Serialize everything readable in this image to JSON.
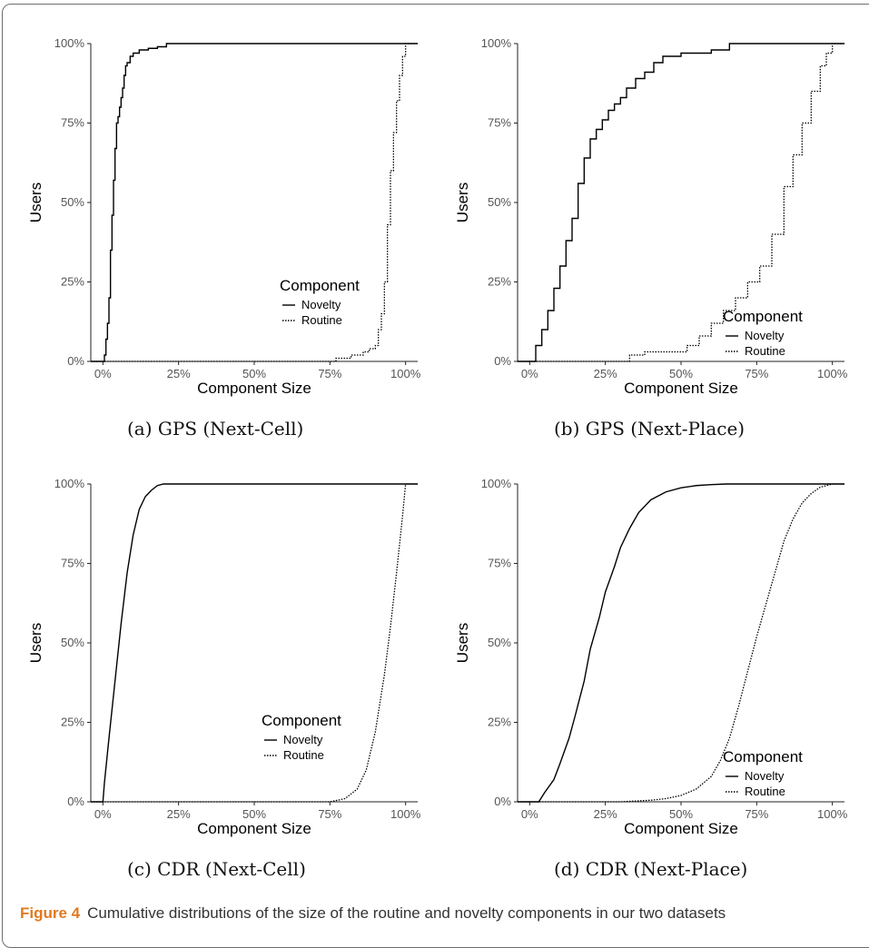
{
  "figure_caption": {
    "label": "Figure 4",
    "text": "Cumulative distributions of the size of the routine and novelty components in our two datasets"
  },
  "chart_data": [
    {
      "type": "line",
      "subcaption": "(a)  GPS (Next-Cell)",
      "xlabel": "Component Size",
      "ylabel": "Users",
      "xlim": [
        -0.04,
        1.04
      ],
      "ylim": [
        0,
        1
      ],
      "xticks": [
        "0%",
        "25%",
        "50%",
        "75%",
        "100%"
      ],
      "yticks": [
        "0%",
        "25%",
        "50%",
        "75%",
        "100%"
      ],
      "legend": {
        "title": "Component",
        "position": "center-right"
      },
      "step": true,
      "series": [
        {
          "name": "Novelty",
          "style": "solid",
          "x": [
            -0.04,
            0.005,
            0.01,
            0.015,
            0.02,
            0.025,
            0.03,
            0.035,
            0.04,
            0.045,
            0.05,
            0.055,
            0.06,
            0.065,
            0.07,
            0.075,
            0.08,
            0.09,
            0.1,
            0.12,
            0.15,
            0.18,
            0.21,
            0.3,
            1.04
          ],
          "y": [
            0,
            0.02,
            0.07,
            0.12,
            0.2,
            0.35,
            0.46,
            0.57,
            0.67,
            0.75,
            0.77,
            0.8,
            0.83,
            0.86,
            0.9,
            0.93,
            0.94,
            0.96,
            0.97,
            0.98,
            0.985,
            0.99,
            1.0,
            1.0,
            1.0
          ]
        },
        {
          "name": "Routine",
          "style": "dotted",
          "x": [
            -0.04,
            0.77,
            0.82,
            0.86,
            0.88,
            0.9,
            0.91,
            0.92,
            0.93,
            0.94,
            0.95,
            0.96,
            0.97,
            0.98,
            0.99,
            1.0,
            1.04
          ],
          "y": [
            0,
            0.01,
            0.02,
            0.03,
            0.04,
            0.05,
            0.1,
            0.15,
            0.25,
            0.43,
            0.6,
            0.72,
            0.82,
            0.9,
            0.96,
            1.0,
            1.0
          ]
        }
      ]
    },
    {
      "type": "line",
      "subcaption": "(b)  GPS (Next-Place)",
      "xlabel": "Component Size",
      "ylabel": "Users",
      "xlim": [
        -0.04,
        1.04
      ],
      "ylim": [
        0,
        1
      ],
      "xticks": [
        "0%",
        "25%",
        "50%",
        "75%",
        "100%"
      ],
      "yticks": [
        "0%",
        "25%",
        "50%",
        "75%",
        "100%"
      ],
      "legend": {
        "title": "Component",
        "position": "bottom-right"
      },
      "step": true,
      "series": [
        {
          "name": "Novelty",
          "style": "solid",
          "x": [
            -0.04,
            0.02,
            0.04,
            0.06,
            0.08,
            0.1,
            0.12,
            0.14,
            0.16,
            0.18,
            0.2,
            0.22,
            0.24,
            0.26,
            0.28,
            0.3,
            0.32,
            0.35,
            0.38,
            0.41,
            0.44,
            0.5,
            0.6,
            0.66,
            0.75,
            1.04
          ],
          "y": [
            0,
            0.05,
            0.1,
            0.16,
            0.23,
            0.3,
            0.38,
            0.45,
            0.56,
            0.64,
            0.7,
            0.73,
            0.76,
            0.79,
            0.81,
            0.83,
            0.86,
            0.89,
            0.91,
            0.94,
            0.96,
            0.97,
            0.98,
            1.0,
            1.0,
            1.0
          ]
        },
        {
          "name": "Routine",
          "style": "dotted",
          "x": [
            -0.04,
            0.33,
            0.38,
            0.45,
            0.52,
            0.56,
            0.6,
            0.64,
            0.68,
            0.72,
            0.76,
            0.8,
            0.84,
            0.87,
            0.9,
            0.93,
            0.96,
            0.98,
            1.0,
            1.04
          ],
          "y": [
            0,
            0.02,
            0.03,
            0.03,
            0.05,
            0.08,
            0.12,
            0.16,
            0.2,
            0.25,
            0.3,
            0.4,
            0.55,
            0.65,
            0.75,
            0.85,
            0.93,
            0.97,
            1.0,
            1.0
          ]
        }
      ]
    },
    {
      "type": "line",
      "subcaption": "(c)  CDR (Next-Cell)",
      "xlabel": "Component Size",
      "ylabel": "Users",
      "xlim": [
        -0.04,
        1.04
      ],
      "ylim": [
        0,
        1
      ],
      "xticks": [
        "0%",
        "25%",
        "50%",
        "75%",
        "100%"
      ],
      "yticks": [
        "0%",
        "25%",
        "50%",
        "75%",
        "100%"
      ],
      "legend": {
        "title": "Component",
        "position": "bottom-right"
      },
      "step": false,
      "series": [
        {
          "name": "Novelty",
          "style": "solid",
          "x": [
            -0.04,
            0.0,
            0.005,
            0.02,
            0.04,
            0.06,
            0.08,
            0.1,
            0.12,
            0.14,
            0.16,
            0.18,
            0.2,
            0.25,
            1.04
          ],
          "y": [
            0,
            0.0,
            0.06,
            0.2,
            0.38,
            0.56,
            0.72,
            0.84,
            0.92,
            0.96,
            0.98,
            0.995,
            1.0,
            1.0,
            1.0
          ]
        },
        {
          "name": "Routine",
          "style": "dotted",
          "x": [
            -0.04,
            0.75,
            0.8,
            0.84,
            0.87,
            0.9,
            0.93,
            0.95,
            0.97,
            0.99,
            1.0,
            1.04
          ],
          "y": [
            0,
            0.0,
            0.01,
            0.04,
            0.1,
            0.22,
            0.4,
            0.55,
            0.72,
            0.9,
            1.0,
            1.0
          ]
        }
      ]
    },
    {
      "type": "line",
      "subcaption": "(d)  CDR (Next-Place)",
      "xlabel": "Component Size",
      "ylabel": "Users",
      "xlim": [
        -0.04,
        1.04
      ],
      "ylim": [
        0,
        1
      ],
      "xticks": [
        "0%",
        "25%",
        "50%",
        "75%",
        "100%"
      ],
      "yticks": [
        "0%",
        "25%",
        "50%",
        "75%",
        "100%"
      ],
      "legend": {
        "title": "Component",
        "position": "bottom-right"
      },
      "step": false,
      "series": [
        {
          "name": "Novelty",
          "style": "solid",
          "x": [
            -0.04,
            0.03,
            0.05,
            0.08,
            0.1,
            0.13,
            0.15,
            0.18,
            0.2,
            0.23,
            0.25,
            0.28,
            0.3,
            0.33,
            0.36,
            0.4,
            0.45,
            0.5,
            0.55,
            0.6,
            0.65,
            1.04
          ],
          "y": [
            0,
            0.0,
            0.03,
            0.07,
            0.12,
            0.2,
            0.27,
            0.38,
            0.48,
            0.58,
            0.66,
            0.74,
            0.8,
            0.86,
            0.91,
            0.95,
            0.975,
            0.988,
            0.995,
            0.998,
            1.0,
            1.0
          ]
        },
        {
          "name": "Routine",
          "style": "dotted",
          "x": [
            -0.04,
            0.3,
            0.4,
            0.45,
            0.5,
            0.55,
            0.6,
            0.63,
            0.66,
            0.69,
            0.72,
            0.75,
            0.78,
            0.81,
            0.84,
            0.87,
            0.9,
            0.93,
            0.96,
            1.0,
            1.04
          ],
          "y": [
            0,
            0.0,
            0.005,
            0.01,
            0.02,
            0.04,
            0.08,
            0.13,
            0.2,
            0.3,
            0.41,
            0.52,
            0.62,
            0.72,
            0.82,
            0.89,
            0.94,
            0.97,
            0.99,
            1.0,
            1.0
          ]
        }
      ]
    }
  ]
}
